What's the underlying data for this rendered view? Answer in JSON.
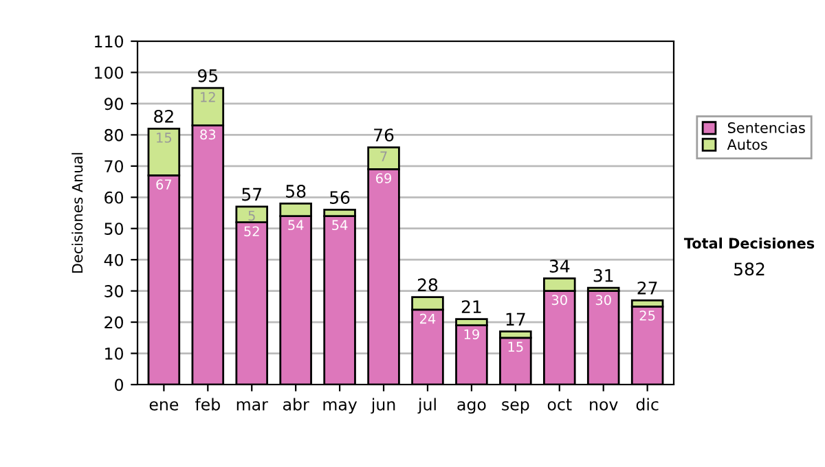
{
  "chart_data": {
    "type": "bar",
    "stacked": true,
    "ylabel": "Decisiones Anual",
    "categories": [
      "ene",
      "feb",
      "mar",
      "abr",
      "may",
      "jun",
      "jul",
      "ago",
      "sep",
      "oct",
      "nov",
      "dic"
    ],
    "series": [
      {
        "name": "Sentencias",
        "color": "#dd77bb",
        "values": [
          67,
          83,
          52,
          54,
          54,
          69,
          24,
          19,
          15,
          30,
          30,
          25
        ],
        "value_labels": [
          "67",
          "83",
          "52",
          "54",
          "54",
          "69",
          "24",
          "19",
          "15",
          "30",
          "30",
          "25"
        ]
      },
      {
        "name": "Autos",
        "color": "#cce68f",
        "values": [
          15,
          12,
          5,
          4,
          2,
          7,
          4,
          2,
          2,
          4,
          1,
          2
        ],
        "value_labels": [
          "15",
          "12",
          "5",
          null,
          null,
          "7",
          null,
          null,
          null,
          null,
          null,
          null
        ]
      }
    ],
    "totals": [
      "82",
      "95",
      "57",
      "58",
      "56",
      "76",
      "28",
      "21",
      "17",
      "34",
      "31",
      "27"
    ],
    "ylim": [
      0,
      110
    ],
    "yticks": [
      0,
      10,
      20,
      30,
      40,
      50,
      60,
      70,
      80,
      90,
      100,
      110
    ],
    "grid": "y",
    "legend": "right",
    "annotations": [
      "Total Decisiones",
      "582"
    ]
  }
}
